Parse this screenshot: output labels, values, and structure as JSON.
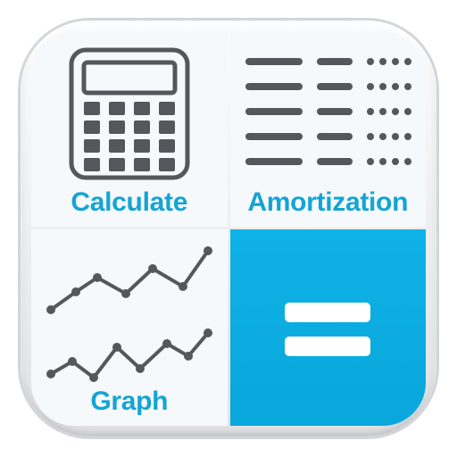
{
  "colors": {
    "accent": "#14a4d4",
    "iconStroke": "#54585c",
    "equalsBg": "#0aaade",
    "equalsBar": "#ffffff",
    "tileBg": "#f6f9fb",
    "frameLight": "#fbfcfd",
    "frameDark": "#d7d9db"
  },
  "layout": {
    "iconSize": 466,
    "cornerRadius": 78,
    "gridGap": 3,
    "labelFontSize": 30,
    "labelWeight": 700
  },
  "tiles": {
    "calculate": {
      "label": "Calculate",
      "iconName": "calculator-icon"
    },
    "amortization": {
      "label": "Amortization",
      "iconName": "list-icon",
      "list": {
        "rows": 5,
        "dotsPerRow": 4,
        "rowSpacing": 26
      }
    },
    "graph": {
      "label": "Graph",
      "iconName": "line-chart-icon",
      "series": [
        {
          "points": [
            [
              12,
              80
            ],
            [
              40,
              60
            ],
            [
              64,
              44
            ],
            [
              96,
              62
            ],
            [
              126,
              34
            ],
            [
              160,
              54
            ],
            [
              188,
              14
            ]
          ]
        },
        {
          "points": [
            [
              12,
              152
            ],
            [
              36,
              138
            ],
            [
              60,
              156
            ],
            [
              86,
              122
            ],
            [
              112,
              146
            ],
            [
              142,
              118
            ],
            [
              166,
              132
            ],
            [
              188,
              106
            ]
          ]
        }
      ]
    },
    "equals": {
      "iconName": "equals-icon",
      "bars": 2
    }
  }
}
